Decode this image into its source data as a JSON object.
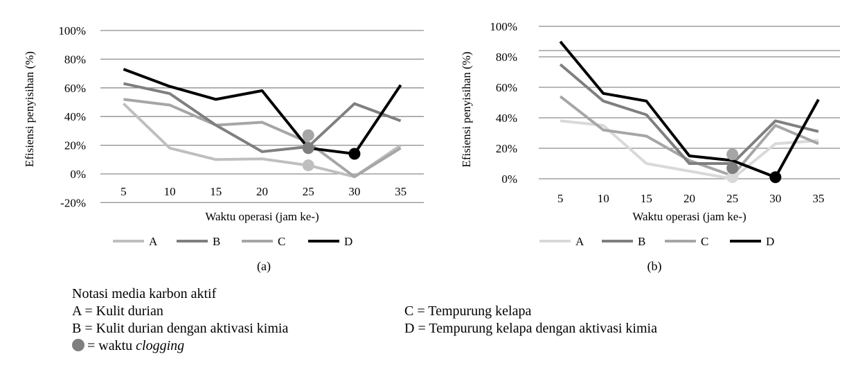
{
  "chart_data": [
    {
      "type": "line",
      "panel_label": "(a)",
      "xlabel": "Waktu operasi (jam ke-)",
      "ylabel": "Efisiensi penyisihan  (%)",
      "categories": [
        5,
        10,
        15,
        20,
        25,
        30,
        35
      ],
      "y_ticks": [
        "-20%",
        "0%",
        "20%",
        "40%",
        "60%",
        "80%",
        "100%"
      ],
      "ylim": [
        -20,
        100
      ],
      "grid": true,
      "legend_position": "bottom",
      "series": [
        {
          "name": "A",
          "color": "#bfbfbf",
          "values": [
            49,
            18,
            10,
            10.5,
            6,
            -2,
            20
          ]
        },
        {
          "name": "B",
          "color": "#7f7f7f",
          "values": [
            63,
            56,
            34,
            15.5,
            19,
            49,
            37
          ]
        },
        {
          "name": "C",
          "color": "#a6a6a6",
          "values": [
            52,
            48,
            34,
            36,
            22,
            -2,
            18
          ]
        },
        {
          "name": "D",
          "color": "#000000",
          "values": [
            73,
            61,
            52,
            58,
            18,
            14,
            62
          ]
        }
      ],
      "clogging": [
        {
          "series": "A",
          "x": 25,
          "y": 6
        },
        {
          "series": "C",
          "x": 25,
          "y": 27
        },
        {
          "series": "B",
          "x": 25,
          "y": 18
        },
        {
          "series": "D",
          "x": 30,
          "y": 14
        }
      ]
    },
    {
      "type": "line",
      "panel_label": "(b)",
      "xlabel": "Waktu operasi (jam ke-)",
      "ylabel": "Efisiensi penyisihan (%)",
      "categories": [
        5,
        10,
        15,
        20,
        25,
        30,
        35
      ],
      "y_ticks": [
        "0%",
        "20%",
        "40%",
        "60%",
        "80%",
        "100%"
      ],
      "ylim": [
        0,
        100
      ],
      "grid": true,
      "legend_position": "bottom",
      "series": [
        {
          "name": "A",
          "color": "#d9d9d9",
          "values": [
            38,
            35,
            10,
            5,
            0,
            23,
            25
          ]
        },
        {
          "name": "B",
          "color": "#7f7f7f",
          "values": [
            75,
            51,
            42,
            10,
            10,
            38,
            31
          ]
        },
        {
          "name": "C",
          "color": "#a6a6a6",
          "values": [
            54,
            32,
            28,
            12,
            2,
            35,
            23
          ]
        },
        {
          "name": "D",
          "color": "#000000",
          "values": [
            90,
            56,
            51,
            15,
            12,
            1,
            52
          ]
        }
      ],
      "clogging": [
        {
          "series": "A",
          "x": 25,
          "y": 1
        },
        {
          "series": "C",
          "x": 25,
          "y": 16
        },
        {
          "series": "B",
          "x": 25,
          "y": 7
        },
        {
          "series": "D",
          "x": 30,
          "y": 1
        }
      ]
    }
  ],
  "notes": {
    "title": "Notasi media karbon aktif",
    "items": [
      {
        "key": "A",
        "text": "A = Kulit durian"
      },
      {
        "key": "B",
        "text": "B = Kulit durian dengan aktivasi kimia"
      },
      {
        "key": "C",
        "text": "C = Tempurung kelapa"
      },
      {
        "key": "D",
        "text": "D = Tempurung kelapa dengan aktivasi kimia"
      }
    ],
    "clogging_prefix": "= waktu ",
    "clogging_word": "clogging",
    "clogging_color": "#7f7f7f"
  }
}
